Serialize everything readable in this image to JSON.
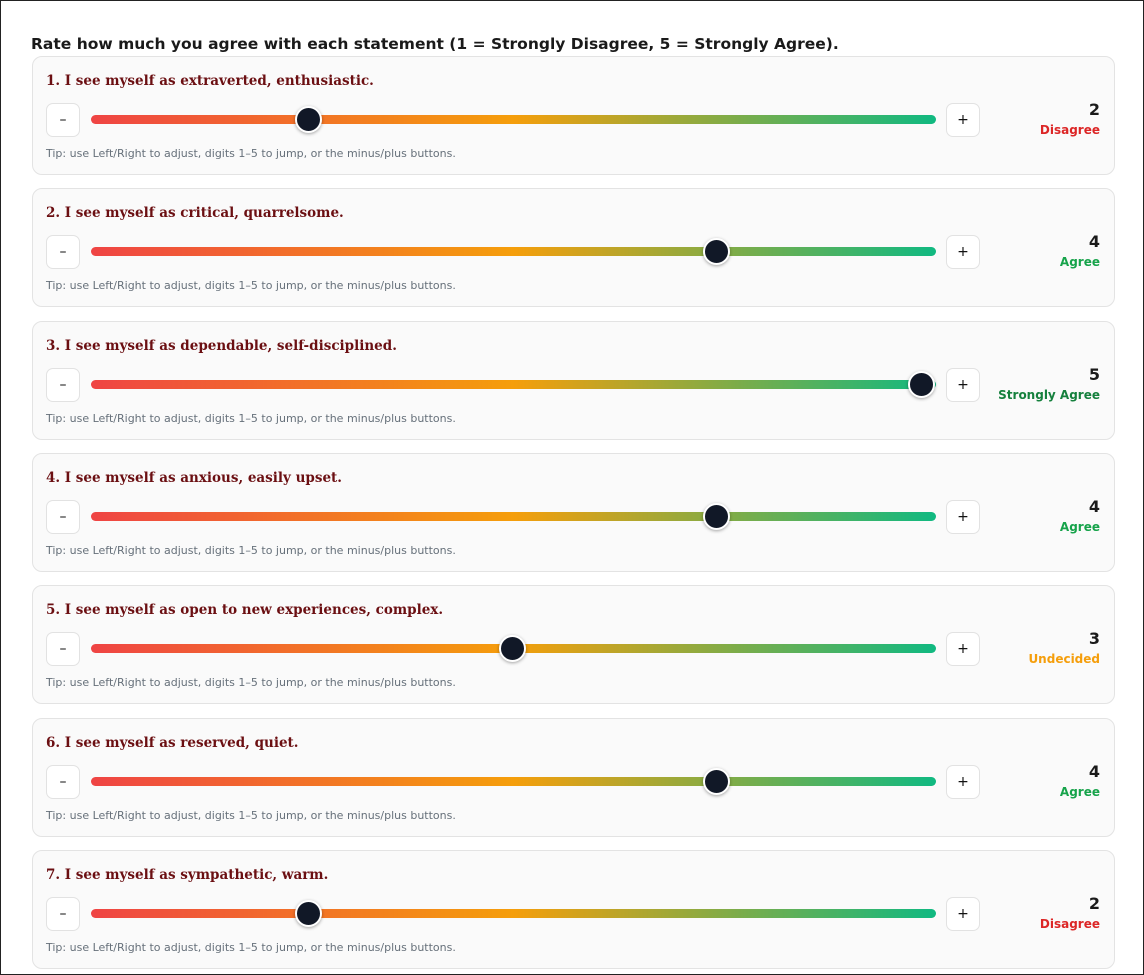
{
  "title": "Rate how much you agree with each statement (1 = Strongly Disagree, 5 = Strongly Agree).",
  "scale": {
    "min": 1,
    "max": 5
  },
  "minus_label": "–",
  "plus_label": "+",
  "tip": "Tip: use Left/Right to adjust, digits 1–5 to jump, or the minus/plus buttons.",
  "label_colors": {
    "Disagree": "#dc2626",
    "Agree": "#16a34a",
    "Strongly Agree": "#15803d",
    "Undecided": "#f59e0b"
  },
  "items": [
    {
      "question": "1. I see myself as extraverted, enthusiastic.",
      "value": 2,
      "label": "Disagree"
    },
    {
      "question": "2. I see myself as critical, quarrelsome.",
      "value": 4,
      "label": "Agree"
    },
    {
      "question": "3. I see myself as dependable, self-disciplined.",
      "value": 5,
      "label": "Strongly Agree"
    },
    {
      "question": "4. I see myself as anxious, easily upset.",
      "value": 4,
      "label": "Agree"
    },
    {
      "question": "5. I see myself as open to new experiences, complex.",
      "value": 3,
      "label": "Undecided"
    },
    {
      "question": "6. I see myself as reserved, quiet.",
      "value": 4,
      "label": "Agree"
    },
    {
      "question": "7. I see myself as sympathetic, warm.",
      "value": 2,
      "label": "Disagree"
    }
  ]
}
